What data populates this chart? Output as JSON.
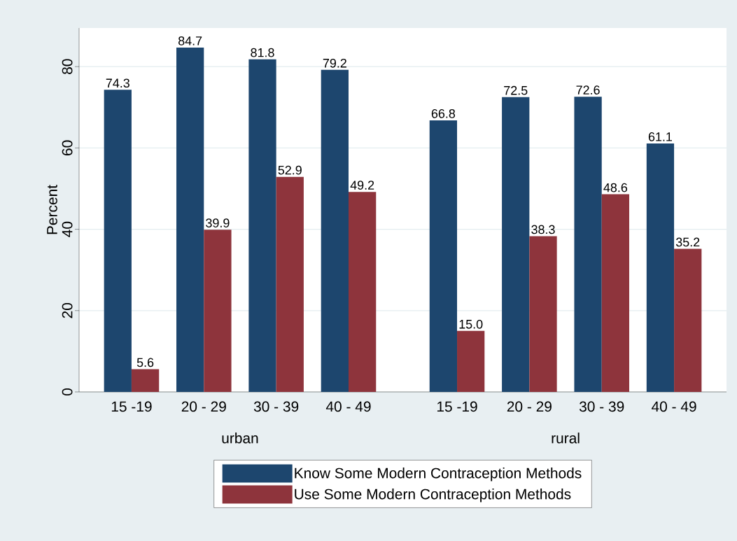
{
  "chart_data": {
    "type": "bar",
    "ylabel": "Percent",
    "categories": [
      "15 -19",
      "20 - 29",
      "30 - 39",
      "40 - 49",
      "15 -19",
      "20 - 29",
      "30 - 39",
      "40 - 49"
    ],
    "series": [
      {
        "name": "Know Some Modern Contraception Methods",
        "color": "#1d466e",
        "values": [
          74.3,
          84.7,
          81.8,
          79.2,
          66.8,
          72.5,
          72.6,
          61.1
        ],
        "value_labels": [
          "74.3",
          "84.7",
          "81.8",
          "79.2",
          "66.8",
          "72.5",
          "72.6",
          "61.1"
        ]
      },
      {
        "name": "Use Some Modern Contraception Methods",
        "color": "#8e343c",
        "values": [
          5.6,
          39.9,
          52.9,
          49.2,
          15.0,
          38.3,
          48.6,
          35.2
        ],
        "value_labels": [
          "5.6",
          "39.9",
          "52.9",
          "49.2",
          "15.0",
          "38.3",
          "48.6",
          "35.2"
        ]
      }
    ],
    "annotations": [
      "urban",
      "rural"
    ],
    "ylim": [
      0,
      89.5
    ],
    "yticks": [
      0,
      20,
      40,
      60,
      80
    ],
    "grid": "y",
    "legend": "bottom"
  }
}
